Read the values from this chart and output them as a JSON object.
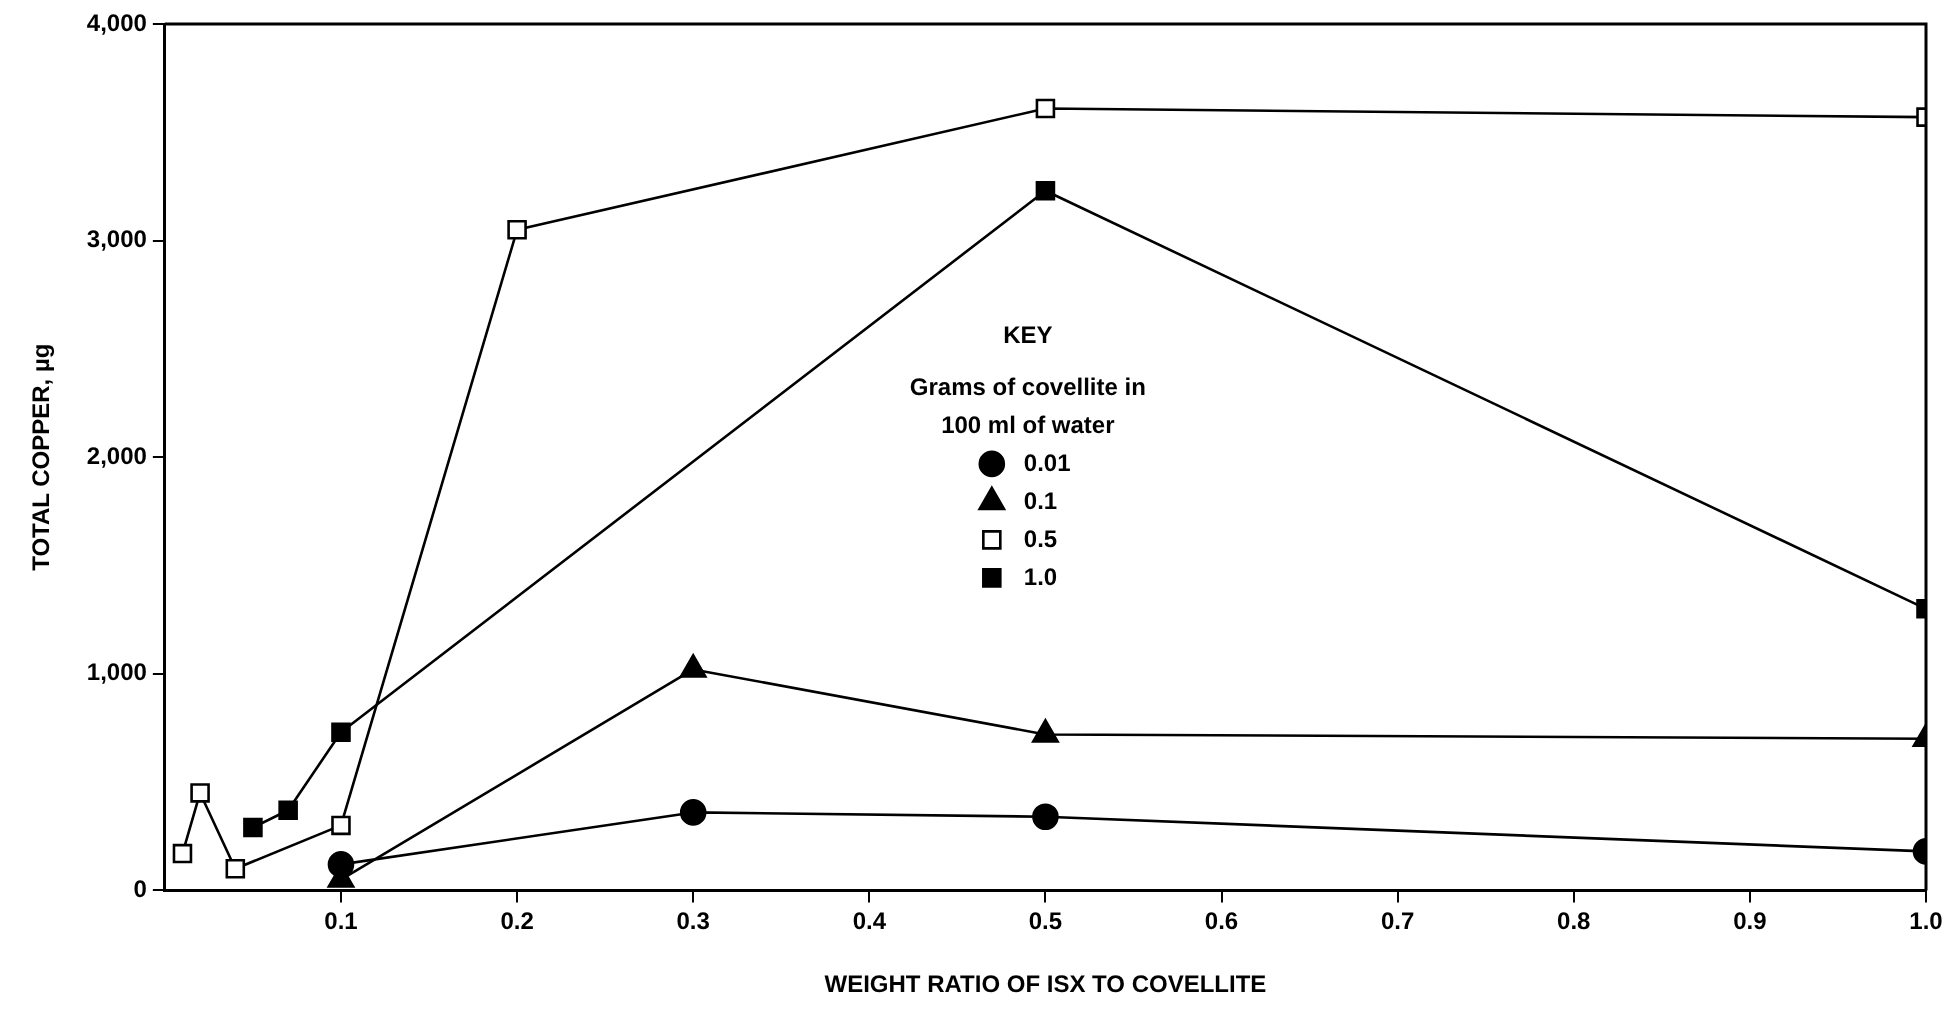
{
  "chart_data": {
    "type": "line",
    "xlabel": "WEIGHT RATIO OF ISX TO COVELLITE",
    "ylabel": "TOTAL COPPER, µg",
    "legend_title": "KEY\nGrams of covellite in\n100 ml of water",
    "legend": "center",
    "grid": false,
    "line_style": "solid",
    "xlim": [
      0,
      1
    ],
    "xticks": [
      0.1,
      0.2,
      0.3,
      0.4,
      0.5,
      0.6,
      0.7,
      0.8,
      0.9,
      {
        "value": 1,
        "label": "1.0"
      }
    ],
    "ylim": [
      0,
      4000
    ],
    "yticks": [
      {
        "value": 0,
        "label": "0"
      },
      {
        "value": 1000,
        "label": "1,000"
      },
      {
        "value": 2000,
        "label": "2,000"
      },
      {
        "value": 3000,
        "label": "3,000"
      },
      {
        "value": 4000,
        "label": "4,000"
      }
    ],
    "series": [
      {
        "name": "0.01",
        "color": "#000000",
        "marker": "circle",
        "x": [
          0.1,
          0.3,
          0.5,
          1
        ],
        "values": [
          120,
          360,
          340,
          180
        ]
      },
      {
        "name": "0.1",
        "color": "#000000",
        "marker": "triangle",
        "x": [
          0.1,
          0.3,
          0.5,
          1
        ],
        "values": [
          50,
          1020,
          720,
          700
        ]
      },
      {
        "name": "0.5",
        "color": "#ffffff",
        "marker": "square",
        "x": [
          0.01,
          0.02,
          0.04,
          0.1,
          0.2,
          0.5,
          1
        ],
        "values": [
          170,
          450,
          100,
          300,
          3050,
          3610,
          3570
        ]
      },
      {
        "name": "1.0",
        "color": "#000000",
        "marker": "square",
        "x": [
          0.05,
          0.07,
          0.1,
          0.5,
          1
        ],
        "values": [
          290,
          370,
          730,
          3230,
          1300
        ]
      }
    ]
  }
}
